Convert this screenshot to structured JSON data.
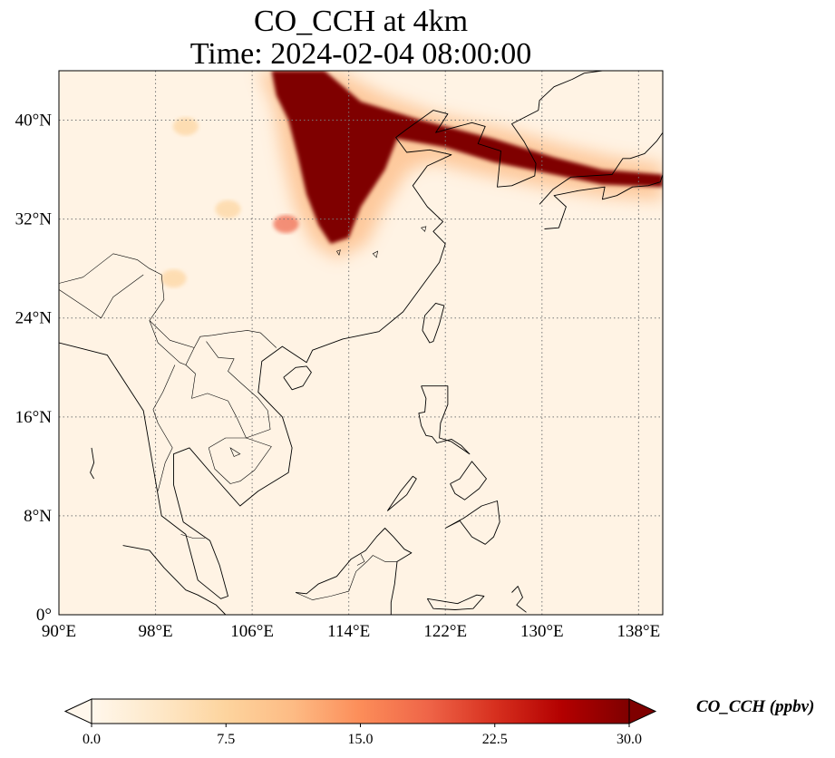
{
  "title": {
    "line1": "CO_CCH at 4km",
    "line2": "Time: 2024-02-04 08:00:00"
  },
  "map": {
    "projection": "PlateCarree",
    "lon_range": [
      90,
      140
    ],
    "lat_range": [
      0,
      44
    ],
    "lon_ticks": [
      {
        "value": 90,
        "label": "90°E"
      },
      {
        "value": 98,
        "label": "98°E"
      },
      {
        "value": 106,
        "label": "106°E"
      },
      {
        "value": 114,
        "label": "114°E"
      },
      {
        "value": 122,
        "label": "122°E"
      },
      {
        "value": 130,
        "label": "130°E"
      },
      {
        "value": 138,
        "label": "138°E"
      }
    ],
    "lat_ticks": [
      {
        "value": 0,
        "label": "0°"
      },
      {
        "value": 8,
        "label": "8°N"
      },
      {
        "value": 16,
        "label": "16°N"
      },
      {
        "value": 24,
        "label": "24°N"
      },
      {
        "value": 32,
        "label": "32°N"
      },
      {
        "value": 40,
        "label": "40°N"
      }
    ],
    "gridlines": "dotted",
    "plume": {
      "core_polygon_lonlat": [
        [
          107.6,
          44
        ],
        [
          112,
          44
        ],
        [
          115,
          41.5
        ],
        [
          120,
          40
        ],
        [
          126,
          38.5
        ],
        [
          131,
          37
        ],
        [
          135,
          36
        ],
        [
          140,
          35.6
        ],
        [
          140,
          34.6
        ],
        [
          135,
          34.8
        ],
        [
          131,
          35.6
        ],
        [
          126,
          36.6
        ],
        [
          122,
          37.8
        ],
        [
          118,
          38.5
        ],
        [
          117,
          36
        ],
        [
          115,
          33
        ],
        [
          114,
          30.5
        ],
        [
          112.5,
          30
        ],
        [
          111.5,
          31.5
        ],
        [
          110.5,
          34
        ],
        [
          109.8,
          37
        ],
        [
          109,
          40
        ],
        [
          108,
          42
        ]
      ],
      "halo_polygon_lonlat": [
        [
          106.5,
          44
        ],
        [
          113,
          44
        ],
        [
          117,
          42
        ],
        [
          121,
          40.6
        ],
        [
          127,
          39.3
        ],
        [
          132,
          37.9
        ],
        [
          136,
          37
        ],
        [
          140,
          36.5
        ],
        [
          140,
          33.5
        ],
        [
          135,
          33.8
        ],
        [
          130,
          34.6
        ],
        [
          125,
          35.6
        ],
        [
          121,
          36.6
        ],
        [
          119,
          36
        ],
        [
          117,
          33
        ],
        [
          115.5,
          30
        ],
        [
          113,
          28.8
        ],
        [
          111,
          30
        ],
        [
          109.5,
          33
        ],
        [
          108.5,
          37
        ],
        [
          107.8,
          41
        ]
      ],
      "small_patches_lonlat": [
        [
          108.8,
          31.6
        ],
        [
          99.5,
          27.2
        ],
        [
          104,
          32.8
        ],
        [
          100.5,
          39.5
        ]
      ]
    },
    "coastlines_lonlat": {
      "china_korea": [
        [
          90,
          22
        ],
        [
          94,
          21
        ],
        [
          97,
          16.5
        ],
        [
          98.5,
          8
        ],
        [
          100.5,
          6.5
        ],
        [
          101.5,
          2.8
        ],
        [
          103.4,
          1.3
        ],
        [
          104,
          1.5
        ],
        [
          103.3,
          4
        ],
        [
          102.5,
          6
        ],
        [
          100.3,
          7.5
        ],
        [
          99.5,
          10.5
        ],
        [
          99.5,
          13
        ],
        [
          100.8,
          13.5
        ],
        [
          103,
          11
        ],
        [
          105,
          8.8
        ],
        [
          106.5,
          10
        ],
        [
          109,
          11.5
        ],
        [
          109.3,
          13.5
        ],
        [
          108.5,
          16
        ],
        [
          106.5,
          18
        ],
        [
          106.8,
          20.5
        ],
        [
          108.5,
          21.7
        ],
        [
          110.5,
          20.4
        ],
        [
          111,
          21.4
        ],
        [
          113.5,
          22.3
        ],
        [
          116.5,
          22.9
        ],
        [
          118.5,
          24.5
        ],
        [
          120,
          26.5
        ],
        [
          121.5,
          28.5
        ],
        [
          122,
          30
        ],
        [
          121,
          31
        ],
        [
          121.8,
          31.8
        ],
        [
          120.5,
          33
        ],
        [
          119.3,
          34.7
        ],
        [
          120.5,
          36.3
        ],
        [
          122.5,
          37.2
        ],
        [
          120.7,
          37.6
        ],
        [
          118.8,
          37.4
        ],
        [
          117.9,
          38.6
        ],
        [
          118.7,
          39.2
        ],
        [
          121,
          40.8
        ],
        [
          122.2,
          40.5
        ],
        [
          121.2,
          39
        ],
        [
          122.3,
          39.3
        ],
        [
          124.2,
          39.8
        ],
        [
          125.3,
          39.5
        ],
        [
          124.7,
          38.1
        ],
        [
          126.6,
          37.5
        ],
        [
          126.3,
          34.6
        ],
        [
          127.5,
          34.7
        ],
        [
          129.4,
          35.5
        ],
        [
          129.5,
          36.5
        ],
        [
          128.5,
          38.3
        ],
        [
          127.5,
          39.7
        ],
        [
          129.7,
          40.8
        ],
        [
          129.8,
          41.6
        ],
        [
          131,
          42.7
        ],
        [
          132.5,
          43.3
        ],
        [
          133.5,
          43.8
        ],
        [
          135,
          44
        ]
      ],
      "japan": [
        [
          130.2,
          31.2
        ],
        [
          131.4,
          31.3
        ],
        [
          132,
          33
        ],
        [
          131,
          33.9
        ],
        [
          133,
          34.3
        ],
        [
          135.2,
          34.6
        ],
        [
          135,
          33.6
        ],
        [
          136.2,
          33.9
        ],
        [
          137.5,
          34.6
        ],
        [
          138.8,
          34.7
        ],
        [
          139.8,
          35
        ],
        [
          140,
          35.6
        ]
      ],
      "japan_west": [
        [
          129.8,
          33.2
        ],
        [
          130.9,
          34.4
        ],
        [
          132.4,
          35.4
        ],
        [
          134,
          35.5
        ],
        [
          135.8,
          35.6
        ],
        [
          136.7,
          36.9
        ],
        [
          137.3,
          36.9
        ],
        [
          138.5,
          37.3
        ],
        [
          139.5,
          38.3
        ],
        [
          140,
          39
        ]
      ],
      "taiwan": [
        [
          120.1,
          23
        ],
        [
          120.7,
          22
        ],
        [
          121,
          22.1
        ],
        [
          121.5,
          23.5
        ],
        [
          121.9,
          25
        ],
        [
          121.2,
          25.2
        ],
        [
          120.3,
          24.2
        ],
        [
          120.1,
          23
        ]
      ],
      "hainan": [
        [
          108.6,
          19.2
        ],
        [
          109.3,
          18.2
        ],
        [
          110.2,
          18.5
        ],
        [
          110.9,
          19.6
        ],
        [
          110.5,
          20.1
        ],
        [
          109.6,
          20
        ],
        [
          108.6,
          19.2
        ]
      ],
      "luzon": [
        [
          120,
          18.5
        ],
        [
          120.6,
          18.5
        ],
        [
          122.2,
          18.5
        ],
        [
          122.2,
          17
        ],
        [
          121.6,
          15.5
        ],
        [
          121.5,
          14.3
        ],
        [
          122.5,
          14
        ],
        [
          124,
          13
        ],
        [
          123.3,
          13.7
        ],
        [
          122.5,
          14.2
        ],
        [
          121.3,
          13.9
        ],
        [
          120.9,
          14.4
        ],
        [
          120.4,
          14.5
        ],
        [
          120,
          15.3
        ],
        [
          119.8,
          16.3
        ],
        [
          120.3,
          16.4
        ],
        [
          120.4,
          17.5
        ],
        [
          120,
          18.5
        ]
      ],
      "mindanao": [
        [
          122,
          7
        ],
        [
          123.5,
          7.8
        ],
        [
          125,
          8.8
        ],
        [
          126.3,
          9.2
        ],
        [
          126.5,
          7.5
        ],
        [
          126,
          6.3
        ],
        [
          125.3,
          5.7
        ],
        [
          124.2,
          6.3
        ],
        [
          123.2,
          7.6
        ],
        [
          122,
          7
        ]
      ],
      "visayas": [
        [
          122.4,
          10.6
        ],
        [
          123.2,
          11
        ],
        [
          124.2,
          12.4
        ],
        [
          125.4,
          11
        ],
        [
          124.8,
          10.2
        ],
        [
          123.6,
          9.3
        ],
        [
          122.8,
          9.8
        ],
        [
          122.4,
          10.6
        ]
      ],
      "palawan": [
        [
          117.2,
          8.4
        ],
        [
          118.8,
          9.7
        ],
        [
          119.6,
          11
        ],
        [
          119.3,
          11.2
        ],
        [
          118.3,
          10
        ],
        [
          117.2,
          8.4
        ]
      ],
      "borneo": [
        [
          109.6,
          1.8
        ],
        [
          110.5,
          1.7
        ],
        [
          111.5,
          2.5
        ],
        [
          113,
          3.1
        ],
        [
          114.2,
          4.5
        ],
        [
          115.4,
          5.2
        ],
        [
          116.3,
          6.3
        ],
        [
          117,
          7
        ],
        [
          117.7,
          6.3
        ],
        [
          118.6,
          5.3
        ],
        [
          119.2,
          5
        ],
        [
          118,
          4.3
        ],
        [
          117.8,
          2.5
        ],
        [
          117.5,
          1
        ],
        [
          117.5,
          0
        ]
      ],
      "sumatra_tip": [
        [
          95.3,
          5.6
        ],
        [
          97.5,
          5.2
        ],
        [
          98.7,
          3.8
        ],
        [
          100.5,
          2
        ],
        [
          101.5,
          1.6
        ],
        [
          103,
          0.8
        ],
        [
          103.8,
          0
        ]
      ],
      "sulawesi": [
        [
          120.5,
          1.3
        ],
        [
          123,
          0.9
        ],
        [
          124.6,
          1.6
        ],
        [
          125.2,
          1.5
        ],
        [
          124.3,
          0.5
        ],
        [
          122.8,
          0.4
        ],
        [
          121,
          0.5
        ],
        [
          120.5,
          1.3
        ]
      ],
      "halmahera": [
        [
          127.5,
          1.8
        ],
        [
          128,
          2.3
        ],
        [
          128.4,
          1.4
        ],
        [
          127.9,
          0.8
        ],
        [
          128.7,
          0.2
        ]
      ],
      "andaman": [
        [
          92.7,
          13.5
        ],
        [
          92.9,
          12.3
        ],
        [
          92.6,
          11.5
        ],
        [
          92.9,
          11
        ]
      ]
    },
    "borders_lonlat": [
      [
        [
          90,
          26.8
        ],
        [
          92,
          27.3
        ],
        [
          94.5,
          29.2
        ],
        [
          96.5,
          28.7
        ],
        [
          97.5,
          28
        ],
        [
          98.5,
          27.5
        ],
        [
          98.7,
          25.5
        ],
        [
          97.5,
          23.8
        ],
        [
          99.2,
          22.2
        ],
        [
          101.2,
          21.6
        ],
        [
          101.7,
          22.5
        ],
        [
          102.7,
          22.6
        ],
        [
          104,
          22.8
        ],
        [
          105.6,
          23
        ],
        [
          106.7,
          22.8
        ],
        [
          108,
          21.6
        ]
      ],
      [
        [
          97.5,
          23.8
        ],
        [
          98.2,
          22
        ],
        [
          100,
          20.4
        ],
        [
          100.5,
          20.2
        ],
        [
          101.2,
          21.6
        ]
      ],
      [
        [
          100.5,
          20.2
        ],
        [
          101.3,
          19.5
        ],
        [
          101,
          17.5
        ],
        [
          102.3,
          17.9
        ],
        [
          104,
          17.3
        ],
        [
          104.7,
          16
        ],
        [
          105.5,
          14.3
        ],
        [
          107.5,
          15
        ],
        [
          107.3,
          16.5
        ],
        [
          106.5,
          17.5
        ],
        [
          105,
          18.8
        ],
        [
          104,
          19.7
        ],
        [
          104.5,
          20.7
        ],
        [
          103.2,
          20.8
        ],
        [
          102.2,
          22.1
        ]
      ],
      [
        [
          97.8,
          16.6
        ],
        [
          98.6,
          18
        ],
        [
          99.6,
          20.2
        ]
      ],
      [
        [
          98.2,
          10
        ],
        [
          98.8,
          12.3
        ],
        [
          99.4,
          13.5
        ],
        [
          98.2,
          15.5
        ],
        [
          97.8,
          16.6
        ]
      ],
      [
        [
          102.4,
          13.5
        ],
        [
          103.8,
          14.3
        ],
        [
          105.5,
          14.3
        ],
        [
          107.6,
          13.6
        ],
        [
          106.2,
          11.7
        ],
        [
          105,
          10.8
        ],
        [
          104.2,
          10.6
        ],
        [
          102.9,
          11.8
        ],
        [
          102.4,
          13.5
        ]
      ],
      [
        [
          100.1,
          6.5
        ],
        [
          101.1,
          6.2
        ],
        [
          102.1,
          6.2
        ]
      ],
      [
        [
          109.6,
          1.8
        ],
        [
          111,
          1.2
        ],
        [
          112.5,
          1.5
        ],
        [
          114,
          1.9
        ],
        [
          114.6,
          3.5
        ],
        [
          115.5,
          4.3
        ],
        [
          116,
          4.8
        ],
        [
          117,
          4.3
        ],
        [
          118,
          4.3
        ]
      ],
      [
        [
          115,
          4.9
        ],
        [
          115.3,
          4.3
        ],
        [
          114.7,
          4
        ]
      ],
      [
        [
          90,
          26.3
        ],
        [
          92,
          25
        ],
        [
          93.5,
          24
        ],
        [
          94.5,
          25.7
        ],
        [
          97,
          27.5
        ]
      ]
    ],
    "lakes_lonlat": [
      [
        [
          113,
          29.4
        ],
        [
          113.3,
          29.5
        ],
        [
          113.2,
          29.1
        ],
        [
          113,
          29.4
        ]
      ],
      [
        [
          116,
          29.2
        ],
        [
          116.4,
          29.4
        ],
        [
          116.3,
          28.9
        ],
        [
          116,
          29.2
        ]
      ],
      [
        [
          120,
          31.3
        ],
        [
          120.4,
          31.4
        ],
        [
          120.3,
          31
        ],
        [
          120,
          31.3
        ]
      ],
      [
        [
          104.5,
          12.8
        ],
        [
          105,
          13
        ],
        [
          104.2,
          13.5
        ],
        [
          104.5,
          12.8
        ]
      ]
    ]
  },
  "colorbar": {
    "vmin": 0.0,
    "vmax": 30.0,
    "extend": "both",
    "cmap": "OrRd",
    "colors": [
      "#fff7ec",
      "#fee8c8",
      "#fdd49e",
      "#fdbb84",
      "#fc8d59",
      "#ef6548",
      "#d7301f",
      "#b30000",
      "#7f0000"
    ],
    "ticks": [
      {
        "value": 0.0,
        "label": "0.0"
      },
      {
        "value": 7.5,
        "label": "7.5"
      },
      {
        "value": 15.0,
        "label": "15.0"
      },
      {
        "value": 22.5,
        "label": "22.5"
      },
      {
        "value": 30.0,
        "label": "30.0"
      }
    ],
    "label": "CO_CCH (ppbv)"
  }
}
